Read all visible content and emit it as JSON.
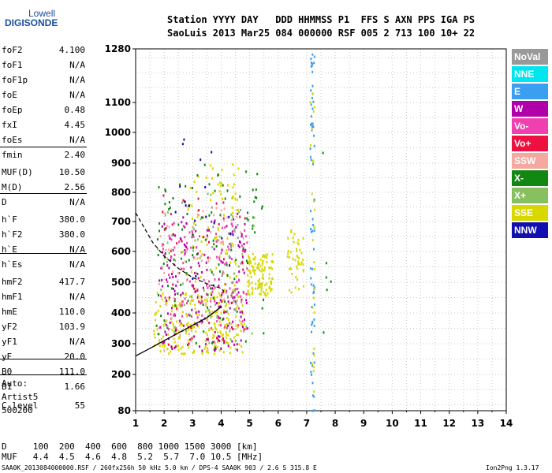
{
  "logo": {
    "line1": "Lowell",
    "line2": "DIGISONDE"
  },
  "header": {
    "row1": "Station YYYY DAY   DDD HHMMSS P1  FFS S AXN PPS IGA PS",
    "row2": "SaoLuis 2013 Mar25 084 000000 RSF 005 2 713 100 10+ 22"
  },
  "parameters": [
    {
      "name": "foF2",
      "value": "4.100"
    },
    {
      "name": "foF1",
      "value": "N/A"
    },
    {
      "name": "foF1p",
      "value": "N/A"
    },
    {
      "name": "foE",
      "value": "N/A"
    },
    {
      "name": "foEp",
      "value": "0.48"
    },
    {
      "name": "fxI",
      "value": "4.45"
    },
    {
      "name": "foEs",
      "value": "N/A"
    },
    {
      "name": "fmin",
      "value": "2.40"
    },
    {
      "name": "MUF(D)",
      "value": "10.50"
    },
    {
      "name": "M(D)",
      "value": "2.56"
    },
    {
      "name": "D",
      "value": "N/A"
    },
    {
      "name": "h`F",
      "value": "380.0"
    },
    {
      "name": "h`F2",
      "value": "380.0"
    },
    {
      "name": "h`E",
      "value": "N/A"
    },
    {
      "name": "h`Es",
      "value": "N/A"
    },
    {
      "name": "hmF2",
      "value": "417.7"
    },
    {
      "name": "hmF1",
      "value": "N/A"
    },
    {
      "name": "hmE",
      "value": "110.0"
    },
    {
      "name": "yF2",
      "value": "103.9"
    },
    {
      "name": "yF1",
      "value": "N/A"
    },
    {
      "name": "yE",
      "value": "20.0"
    },
    {
      "name": "B0",
      "value": "111.0"
    },
    {
      "name": "B1",
      "value": "1.66"
    },
    {
      "name": "C-level",
      "value": "55"
    }
  ],
  "auto": {
    "line1": "Auto:",
    "line2": "Artist5",
    "line3": "500200"
  },
  "legend": [
    {
      "label": "NoVal",
      "color": "#999999"
    },
    {
      "label": "NNE",
      "color": "#00e5ee"
    },
    {
      "label": "E",
      "color": "#3a9ff0"
    },
    {
      "label": "W",
      "color": "#b000a8"
    },
    {
      "label": "Vo-",
      "color": "#f040b0"
    },
    {
      "label": "Vo+",
      "color": "#ee1040"
    },
    {
      "label": "SSW",
      "color": "#f5a8a0"
    },
    {
      "label": "X-",
      "color": "#118811"
    },
    {
      "label": "X+",
      "color": "#88c060"
    },
    {
      "label": "SSE",
      "color": "#d8d800"
    },
    {
      "label": "NNW",
      "color": "#1010b0"
    }
  ],
  "bottom": {
    "d_row": "D     100  200  400  600  800 1000 1500 3000 [km]",
    "muf_row": "MUF   4.4  4.5  4.6  4.8  5.2  5.7  7.0 10.5 [MHz]"
  },
  "footer": {
    "left": "SAA0K_2013084000000.RSF / 260fx256h 50 kHz 5.0 km / DPS-4 SAA0K 903 / 2.6 S 315.8 E",
    "right": "Ion2Png 1.3.17"
  },
  "chart_data": {
    "type": "scatter",
    "xlim": [
      1,
      14
    ],
    "ylim": [
      80,
      1280
    ],
    "x_ticks": [
      1,
      2,
      3,
      4,
      5,
      6,
      7,
      8,
      9,
      10,
      11,
      12,
      13,
      14
    ],
    "y_ticks": [
      80,
      200,
      300,
      400,
      500,
      600,
      700,
      800,
      900,
      1000,
      1100,
      1280
    ],
    "grid": true,
    "legend_position": "right",
    "trace_curve": [
      [
        1.0,
        260
      ],
      [
        1.5,
        285
      ],
      [
        2.0,
        310
      ],
      [
        2.5,
        335
      ],
      [
        3.0,
        360
      ],
      [
        3.5,
        385
      ],
      [
        4.0,
        420
      ]
    ],
    "dashed_profile": [
      [
        1.0,
        730
      ],
      [
        1.3,
        680
      ],
      [
        1.6,
        630
      ],
      [
        2.0,
        585
      ],
      [
        2.5,
        545
      ],
      [
        3.0,
        515
      ],
      [
        3.5,
        495
      ],
      [
        4.0,
        480
      ],
      [
        4.1,
        470
      ]
    ],
    "echo_clusters": [
      {
        "x": [
          1.6,
          4.8
        ],
        "y": [
          270,
          470
        ],
        "color": "#d8d800",
        "n": 260
      },
      {
        "x": [
          2.6,
          4.6
        ],
        "y": [
          470,
          900
        ],
        "color": "#d8d800",
        "n": 90
      },
      {
        "x": [
          4.9,
          5.8
        ],
        "y": [
          460,
          600
        ],
        "color": "#d8d800",
        "n": 120
      },
      {
        "x": [
          6.3,
          6.9
        ],
        "y": [
          470,
          680
        ],
        "color": "#d8d800",
        "n": 45
      },
      {
        "x": [
          1.8,
          4.9
        ],
        "y": [
          280,
          720
        ],
        "color": "#b000a8",
        "n": 180
      },
      {
        "x": [
          1.8,
          4.9
        ],
        "y": [
          350,
          700
        ],
        "color": "#f040b0",
        "n": 120
      },
      {
        "x": [
          1.8,
          4.9
        ],
        "y": [
          300,
          800
        ],
        "color": "#ee1040",
        "n": 60
      },
      {
        "x": [
          1.7,
          5.5
        ],
        "y": [
          280,
          900
        ],
        "color": "#118811",
        "n": 110
      },
      {
        "x": [
          1.7,
          5.2
        ],
        "y": [
          300,
          800
        ],
        "color": "#88c060",
        "n": 60
      },
      {
        "x": [
          1.8,
          4.8
        ],
        "y": [
          280,
          750
        ],
        "color": "#f5a8a0",
        "n": 60
      },
      {
        "x": [
          2.2,
          4.5
        ],
        "y": [
          500,
          1000
        ],
        "color": "#1010b0",
        "n": 20
      },
      {
        "x": [
          3.5,
          4.7
        ],
        "y": [
          400,
          760
        ],
        "color": "#999999",
        "n": 25
      },
      {
        "x": [
          7.1,
          7.25
        ],
        "y": [
          80,
          1270
        ],
        "color": "#3a9ff0",
        "n": 70
      },
      {
        "x": [
          7.1,
          7.25
        ],
        "y": [
          80,
          1270
        ],
        "color": "#d8d800",
        "n": 25
      },
      {
        "x": [
          7.5,
          8.0
        ],
        "y": [
          250,
          1270
        ],
        "color": "#118811",
        "n": 6
      }
    ]
  }
}
